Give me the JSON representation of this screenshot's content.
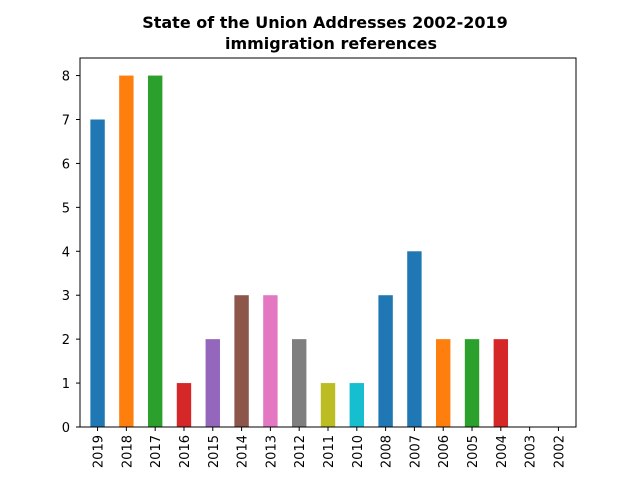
{
  "chart_data": {
    "type": "bar",
    "title_lines": [
      "State of the Union Addresses 2002-2019",
      "immigration references"
    ],
    "xlabel": "",
    "ylabel": "",
    "categories": [
      "2019",
      "2018",
      "2017",
      "2016",
      "2015",
      "2014",
      "2013",
      "2012",
      "2011",
      "2010",
      "2008",
      "2007",
      "2006",
      "2005",
      "2004",
      "2003",
      "2002"
    ],
    "values": [
      7,
      8,
      8,
      1,
      2,
      3,
      3,
      2,
      1,
      1,
      3,
      4,
      2,
      2,
      2,
      0,
      0
    ],
    "bar_colors": [
      "#1f77b4",
      "#ff7f0e",
      "#2ca02c",
      "#d62728",
      "#9467bd",
      "#8c564b",
      "#e377c2",
      "#7f7f7f",
      "#bcbd22",
      "#17becf",
      "#1f77b4",
      "#1f77b4",
      "#ff7f0e",
      "#2ca02c",
      "#d62728",
      "#9467bd",
      "#8c564b"
    ],
    "ylim": [
      0,
      8.4
    ],
    "yticks": [
      0,
      1,
      2,
      3,
      4,
      5,
      6,
      7,
      8
    ],
    "grid": false,
    "legend": "none"
  }
}
